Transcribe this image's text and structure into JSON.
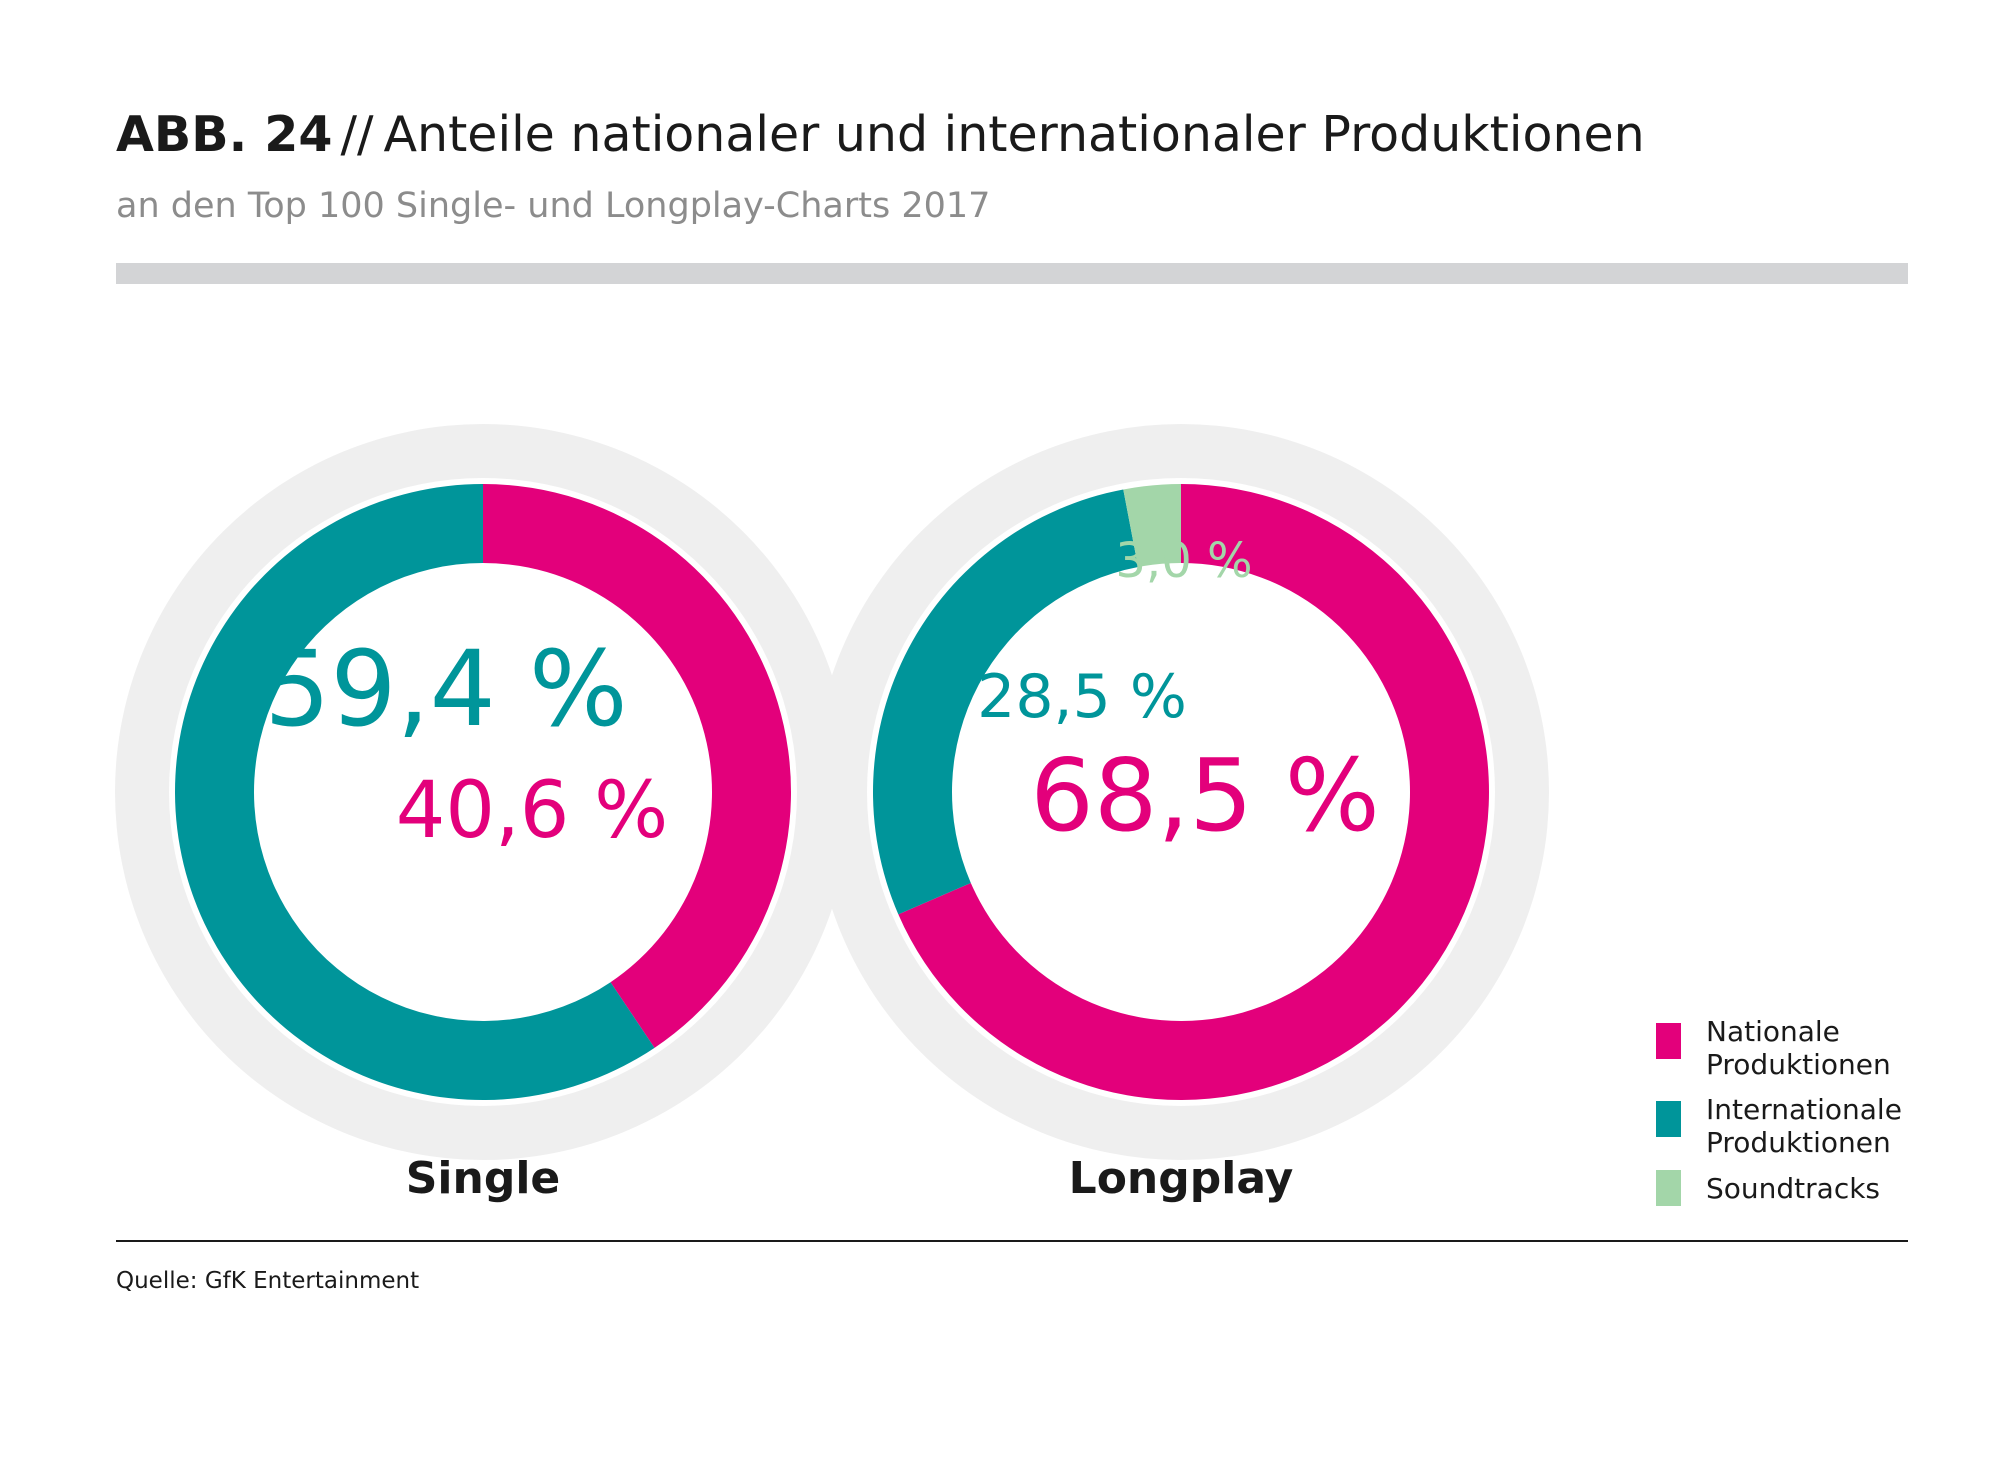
{
  "title": {
    "prefix": "ABB. 24",
    "separator": "//",
    "text": "Anteile nationaler und internationaler Produktionen"
  },
  "subtitle": "an den Top 100 Single- und Longplay-Charts 2017",
  "colors": {
    "national": "#e3007b",
    "international": "#00959a",
    "soundtracks": "#a3d6a9",
    "halo": "#efefef",
    "title_bar": "#d3d4d6"
  },
  "chart_data": {
    "type": "pie",
    "variant": "donut",
    "charts": [
      {
        "name": "Single",
        "slices": [
          {
            "label": "Nationale Produktionen",
            "value": 40.6,
            "value_label": "40,6 %"
          },
          {
            "label": "Internationale Produktionen",
            "value": 59.4,
            "value_label": "59,4 %"
          }
        ]
      },
      {
        "name": "Longplay",
        "slices": [
          {
            "label": "Nationale Produktionen",
            "value": 68.5,
            "value_label": "68,5 %"
          },
          {
            "label": "Internationale Produktionen",
            "value": 28.5,
            "value_label": "28,5 %"
          },
          {
            "label": "Soundtracks",
            "value": 3.0,
            "value_label": "3,0 %"
          }
        ]
      }
    ],
    "legend": [
      {
        "label": "Nationale Produktionen",
        "color": "#e3007b"
      },
      {
        "label": "Internationale Produktionen",
        "color": "#00959a"
      },
      {
        "label": "Soundtracks",
        "color": "#a3d6a9"
      }
    ],
    "legend_position": "bottom-right"
  },
  "source": "Quelle: GfK Entertainment"
}
